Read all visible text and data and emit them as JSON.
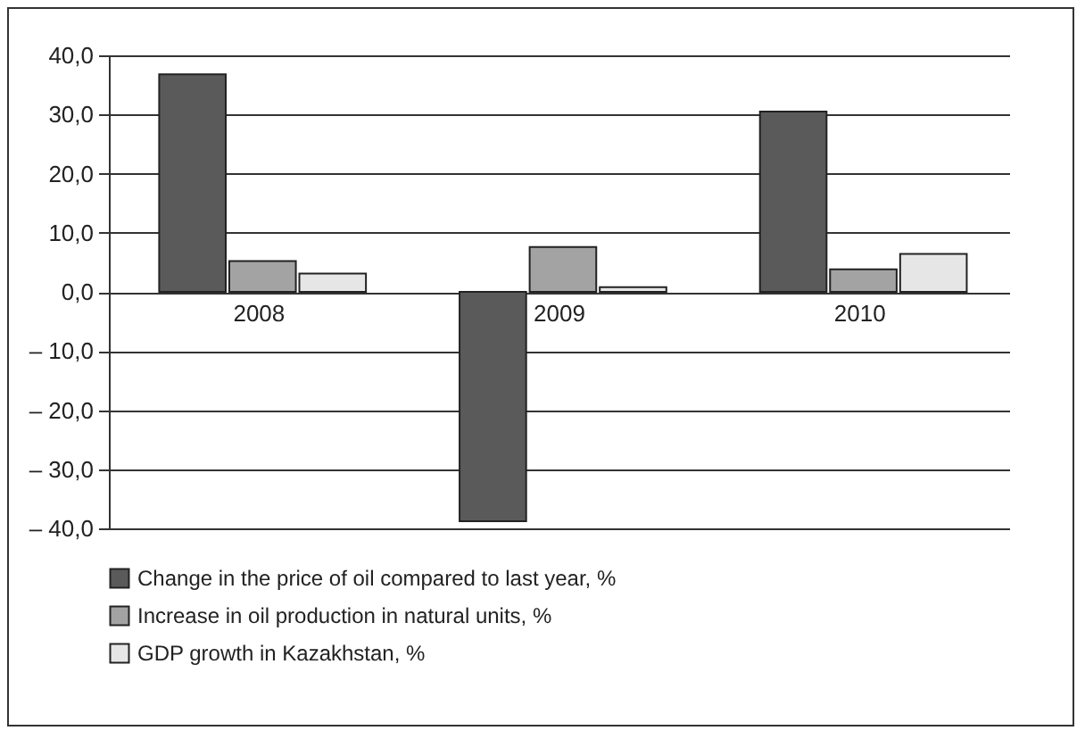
{
  "chart_data": {
    "type": "bar",
    "categories": [
      "2008",
      "2009",
      "2010"
    ],
    "series": [
      {
        "name": "Change in the price of oil compared to last year, %",
        "color": "#5a5a5a",
        "values": [
          36.8,
          -38.8,
          30.5
        ]
      },
      {
        "name": "Increase in oil production in natural units, %",
        "color": "#a3a3a3",
        "values": [
          5.2,
          7.6,
          3.8
        ]
      },
      {
        "name": "GDP growth in Kazakhstan, %",
        "color": "#e6e6e6",
        "values": [
          3.1,
          0.8,
          6.4
        ]
      }
    ],
    "ylim": [
      -40,
      40
    ],
    "yticks": [
      {
        "value": -40,
        "label": "– 40,0"
      },
      {
        "value": -30,
        "label": "– 30,0"
      },
      {
        "value": -20,
        "label": "– 20,0"
      },
      {
        "value": -10,
        "label": "– 10,0"
      },
      {
        "value": 0,
        "label": "0,0"
      },
      {
        "value": 10,
        "label": "10,0"
      },
      {
        "value": 20,
        "label": "20,0"
      },
      {
        "value": 30,
        "label": "30,0"
      },
      {
        "value": 40,
        "label": "40,0"
      }
    ],
    "grid": "y",
    "legend": "bottom"
  }
}
